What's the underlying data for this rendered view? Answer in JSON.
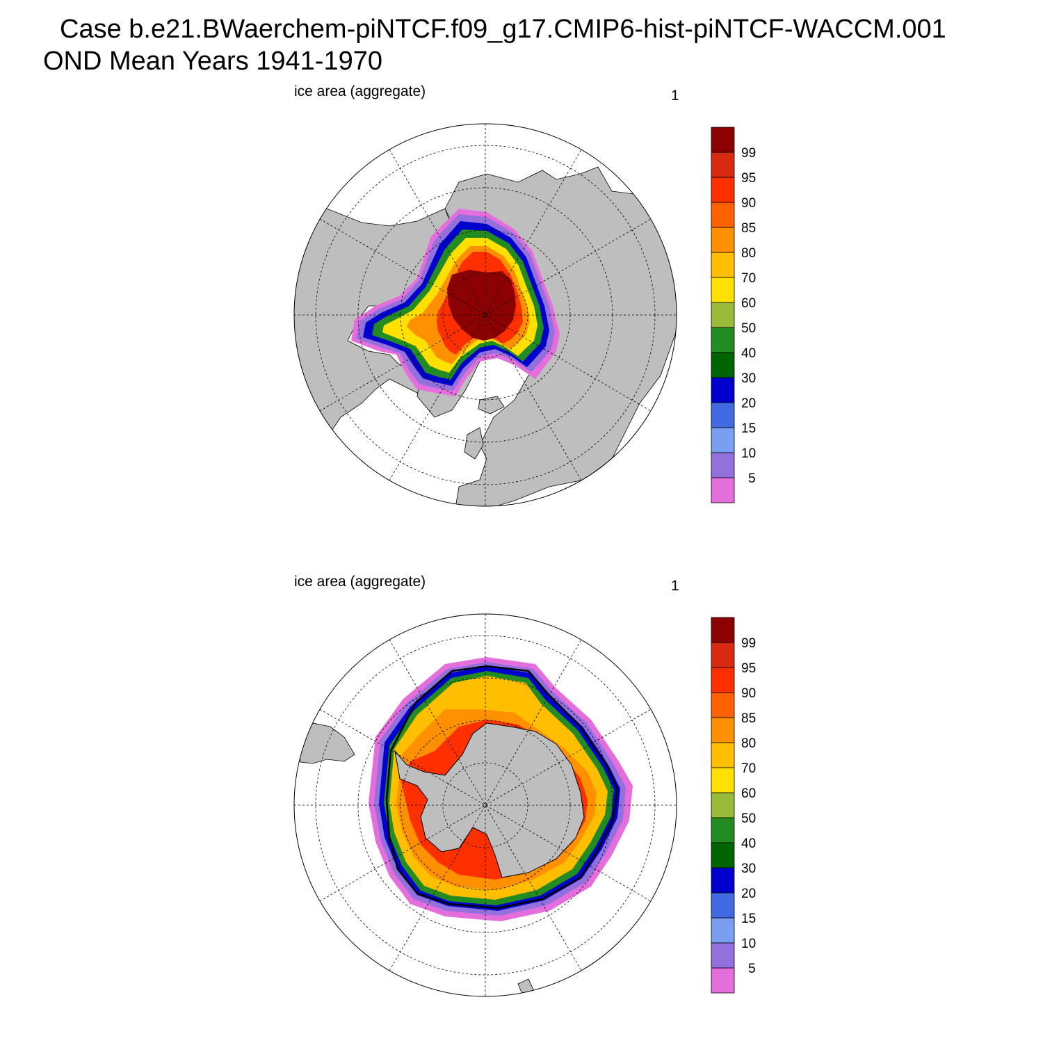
{
  "title": {
    "line1": "Case b.e21.BWaerchem-piNTCF.f09_g17.CMIP6-hist-piNTCF-WACCM.001",
    "line2": "OND Mean   Years 1941-1970"
  },
  "panels": [
    {
      "id": "north",
      "label": "ice area  (aggregate)",
      "number": "1",
      "hemisphere": "Northern"
    },
    {
      "id": "south",
      "label": "ice area  (aggregate)",
      "number": "1",
      "hemisphere": "Southern"
    }
  ],
  "colorbar": {
    "levels": [
      "5",
      "10",
      "15",
      "20",
      "30",
      "40",
      "50",
      "60",
      "70",
      "80",
      "85",
      "90",
      "95",
      "99"
    ],
    "colors": [
      "#e46fdc",
      "#9370db",
      "#7a9ef0",
      "#4169e1",
      "#0000cd",
      "#006400",
      "#228b22",
      "#9abb3a",
      "#ffe000",
      "#ffbf00",
      "#ff9000",
      "#ff6000",
      "#ff3000",
      "#d82a10",
      "#8b0000"
    ]
  },
  "colors": {
    "land": "#bebebe",
    "ocean": "#ffffff",
    "outline": "#000000"
  }
}
